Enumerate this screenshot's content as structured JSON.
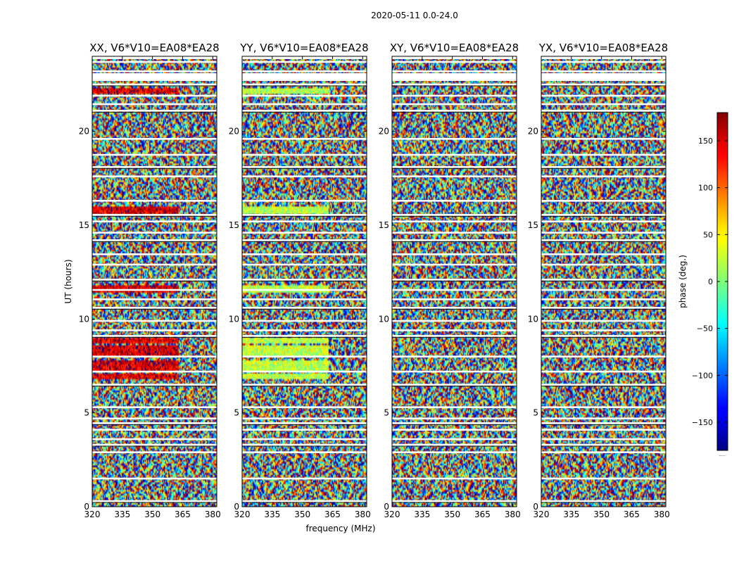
{
  "chart_data": {
    "type": "heatmap",
    "title": "2020-05-11 0.0-24.0",
    "xlabel": "frequency (MHz)",
    "ylabel": "UT (hours)",
    "xlim": [
      320,
      382
    ],
    "ylim": [
      0,
      24
    ],
    "xticks": [
      "320",
      "335",
      "350",
      "365",
      "380"
    ],
    "yticks": [
      "0",
      "5",
      "10",
      "15",
      "20"
    ],
    "panels": [
      {
        "title": "XX, V6*V10=EA08*EA28",
        "pol": "XX"
      },
      {
        "title": "YY, V6*V10=EA08*EA28",
        "pol": "YY"
      },
      {
        "title": "XY, V6*V10=EA08*EA28",
        "pol": "XY"
      },
      {
        "title": "YX, V6*V10=EA08*EA28",
        "pol": "YX"
      }
    ],
    "colorbar": {
      "label": "phase (deg.)",
      "range": [
        -180,
        180
      ],
      "ticks": [
        "150",
        "100",
        "50",
        "0",
        "−50",
        "−100",
        "−150"
      ],
      "tick_values": [
        150,
        100,
        50,
        0,
        -50,
        -100,
        -150
      ],
      "colormap": "jet",
      "underlabel": "....."
    },
    "gaps_hours": [
      0.3,
      1.5,
      2.9,
      3.3,
      3.6,
      4.1,
      4.45,
      4.7,
      5.3,
      6.5,
      7.2,
      8.0,
      9.1,
      9.4,
      9.9,
      10.6,
      11.05,
      11.55,
      12.1,
      12.9,
      13.45,
      14.2,
      14.6,
      15.2,
      15.55,
      16.3,
      17.6,
      18.1,
      18.75,
      19.6,
      21.1,
      21.45,
      21.9,
      22.5,
      23.2,
      23.7
    ],
    "coherent_bands": [
      {
        "from": 15.6,
        "to": 16.0,
        "fmax": 363
      },
      {
        "from": 11.4,
        "to": 11.8,
        "fmax": 363
      },
      {
        "from": 8.7,
        "to": 9.0,
        "fmax": 363
      },
      {
        "from": 8.0,
        "to": 8.6,
        "fmax": 363
      },
      {
        "from": 7.2,
        "to": 7.8,
        "fmax": 363
      },
      {
        "from": 6.8,
        "to": 7.1,
        "fmax": 363
      },
      {
        "from": 22.0,
        "to": 22.3,
        "fmax": 363
      }
    ]
  }
}
